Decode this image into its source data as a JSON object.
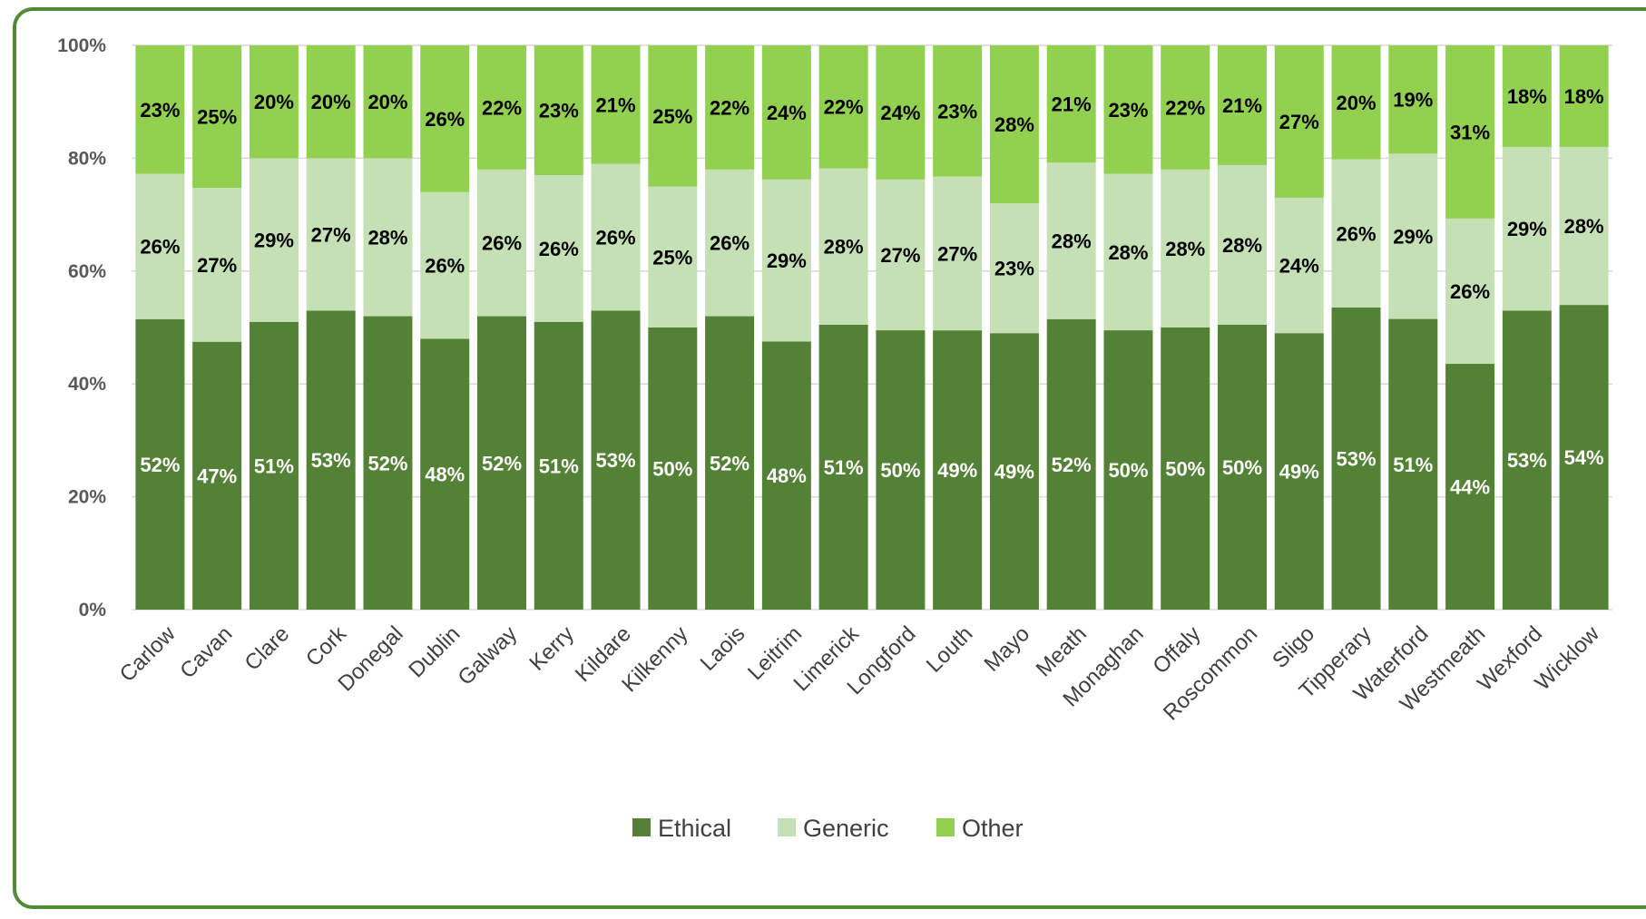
{
  "chart_data": {
    "type": "bar",
    "stacked": true,
    "percent_stacked": true,
    "categories": [
      "Carlow",
      "Cavan",
      "Clare",
      "Cork",
      "Donegal",
      "Dublin",
      "Galway",
      "Kerry",
      "Kildare",
      "Kilkenny",
      "Laois",
      "Leitrim",
      "Limerick",
      "Longford",
      "Louth",
      "Mayo",
      "Meath",
      "Monaghan",
      "Offaly",
      "Roscommon",
      "Sligo",
      "Tipperary",
      "Waterford",
      "Westmeath",
      "Wexford",
      "Wicklow"
    ],
    "series": [
      {
        "name": "Ethical",
        "color": "#538135",
        "label_color": "#ffffff",
        "values": [
          52,
          47,
          51,
          53,
          52,
          48,
          52,
          51,
          53,
          50,
          52,
          48,
          51,
          50,
          49,
          49,
          52,
          50,
          50,
          50,
          49,
          53,
          51,
          44,
          53,
          54
        ]
      },
      {
        "name": "Generic",
        "color": "#c5e0b4",
        "label_color": "#000000",
        "values": [
          26,
          27,
          29,
          27,
          28,
          26,
          26,
          26,
          26,
          25,
          26,
          29,
          28,
          27,
          27,
          23,
          28,
          28,
          28,
          28,
          24,
          26,
          29,
          26,
          29,
          28
        ]
      },
      {
        "name": "Other",
        "color": "#92d050",
        "label_color": "#000000",
        "values": [
          23,
          25,
          20,
          20,
          20,
          26,
          22,
          23,
          21,
          25,
          22,
          24,
          22,
          24,
          23,
          28,
          21,
          23,
          22,
          21,
          27,
          20,
          19,
          31,
          18,
          18
        ]
      }
    ],
    "yticks": [
      "0%",
      "20%",
      "40%",
      "60%",
      "80%",
      "100%"
    ],
    "ylim": [
      0,
      100
    ],
    "grid": true,
    "legend_position": "bottom",
    "title": "",
    "xlabel": "",
    "ylabel": ""
  }
}
